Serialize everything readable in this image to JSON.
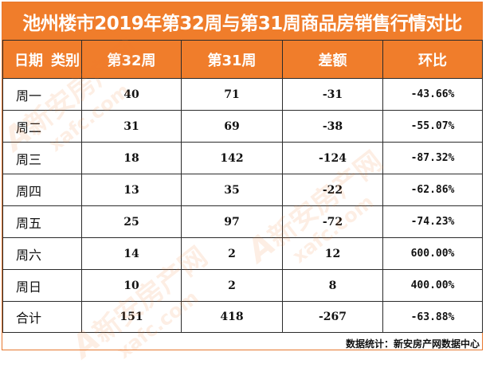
{
  "title": "池州楼市2019年第32周与第31周商品房销售行情对比",
  "header": {
    "corner_left": "日期",
    "corner_right": "类别",
    "columns": [
      "第32周",
      "第31周",
      "差额",
      "环比"
    ]
  },
  "rows": [
    {
      "label": "周一",
      "w32": "40",
      "w31": "71",
      "diff": "-31",
      "ratio": "-43.66%"
    },
    {
      "label": "周二",
      "w32": "31",
      "w31": "69",
      "diff": "-38",
      "ratio": "-55.07%"
    },
    {
      "label": "周三",
      "w32": "18",
      "w31": "142",
      "diff": "-124",
      "ratio": "-87.32%"
    },
    {
      "label": "周四",
      "w32": "13",
      "w31": "35",
      "diff": "-22",
      "ratio": "-62.86%"
    },
    {
      "label": "周五",
      "w32": "25",
      "w31": "97",
      "diff": "-72",
      "ratio": "-74.23%"
    },
    {
      "label": "周六",
      "w32": "14",
      "w31": "2",
      "diff": "12",
      "ratio": "600.00%"
    },
    {
      "label": "周日",
      "w32": "10",
      "w31": "2",
      "diff": "8",
      "ratio": "400.00%"
    },
    {
      "label": "合计",
      "w32": "151",
      "w31": "418",
      "diff": "-267",
      "ratio": "-63.88%"
    }
  ],
  "source": "数据统计：新安房产网数据中心",
  "watermark": {
    "logo": "A",
    "cn": "新安房产网",
    "url": "xafc.com"
  },
  "colors": {
    "accent": "#f07d2b",
    "border": "#2b2b2b",
    "text": "#111111"
  }
}
